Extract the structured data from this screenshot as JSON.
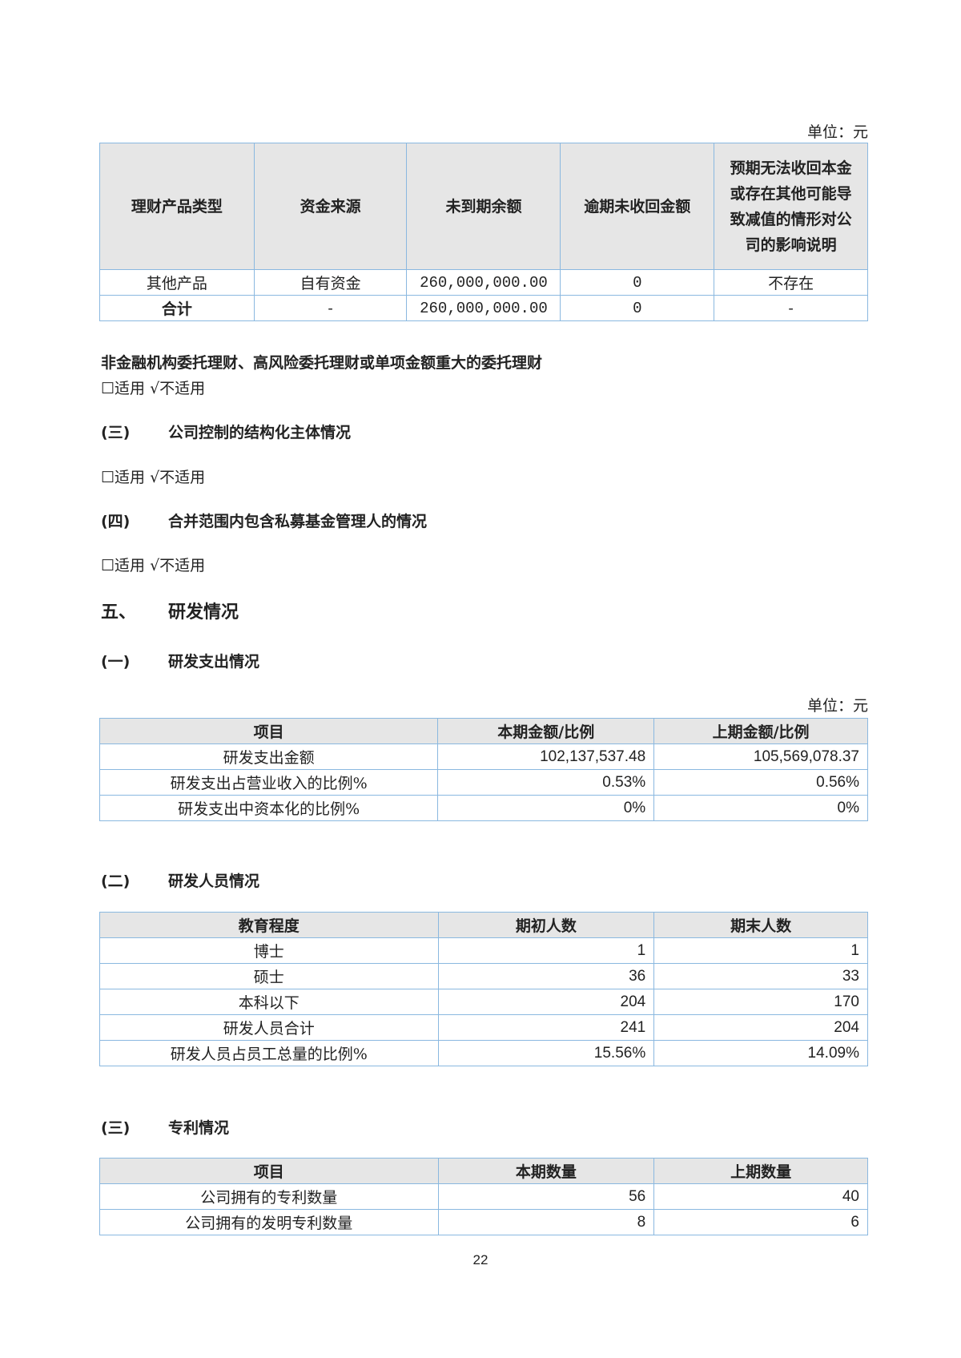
{
  "unit_label": "单位：元",
  "wealth_table": {
    "headers": [
      "理财产品类型",
      "资金来源",
      "未到期余额",
      "逾期未收回金额",
      "预期无法收回本金或存在其他可能导致减值的情形对公司的影响说明"
    ],
    "rows": [
      [
        "其他产品",
        "自有资金",
        "260,000,000.00",
        "0",
        "不存在"
      ],
      [
        "合计",
        "-",
        "260,000,000.00",
        "0",
        "-"
      ]
    ]
  },
  "sections": [
    {
      "title": "非金融机构委托理财、高风险委托理财或单项金额重大的委托理财",
      "option": "☐适用 √不适用"
    },
    {
      "num": "(三)",
      "title": "公司控制的结构化主体情况",
      "option": "☐适用 √不适用"
    },
    {
      "num": "(四)",
      "title": "合并范围内包含私募基金管理人的情况",
      "option": "☐适用 √不适用"
    },
    {
      "num": "五、",
      "title": "研发情况"
    },
    {
      "num": "(一)",
      "title": "研发支出情况"
    },
    {
      "num": "(二)",
      "title": "研发人员情况"
    },
    {
      "num": "(三)",
      "title": "专利情况"
    }
  ],
  "rd_expense": {
    "headers": [
      "项目",
      "本期金额/比例",
      "上期金额/比例"
    ],
    "rows": [
      [
        "研发支出金额",
        "102,137,537.48",
        "105,569,078.37"
      ],
      [
        "研发支出占营业收入的比例%",
        "0.53%",
        "0.56%"
      ],
      [
        "研发支出中资本化的比例%",
        "0%",
        "0%"
      ]
    ]
  },
  "rd_staff": {
    "headers": [
      "教育程度",
      "期初人数",
      "期末人数"
    ],
    "rows": [
      [
        "博士",
        "1",
        "1"
      ],
      [
        "硕士",
        "36",
        "33"
      ],
      [
        "本科以下",
        "204",
        "170"
      ],
      [
        "研发人员合计",
        "241",
        "204"
      ],
      [
        "研发人员占员工总量的比例%",
        "15.56%",
        "14.09%"
      ]
    ]
  },
  "patents": {
    "headers": [
      "项目",
      "本期数量",
      "上期数量"
    ],
    "rows": [
      [
        "公司拥有的专利数量",
        "56",
        "40"
      ],
      [
        "公司拥有的发明专利数量",
        "8",
        "6"
      ]
    ]
  },
  "page_number": "22"
}
